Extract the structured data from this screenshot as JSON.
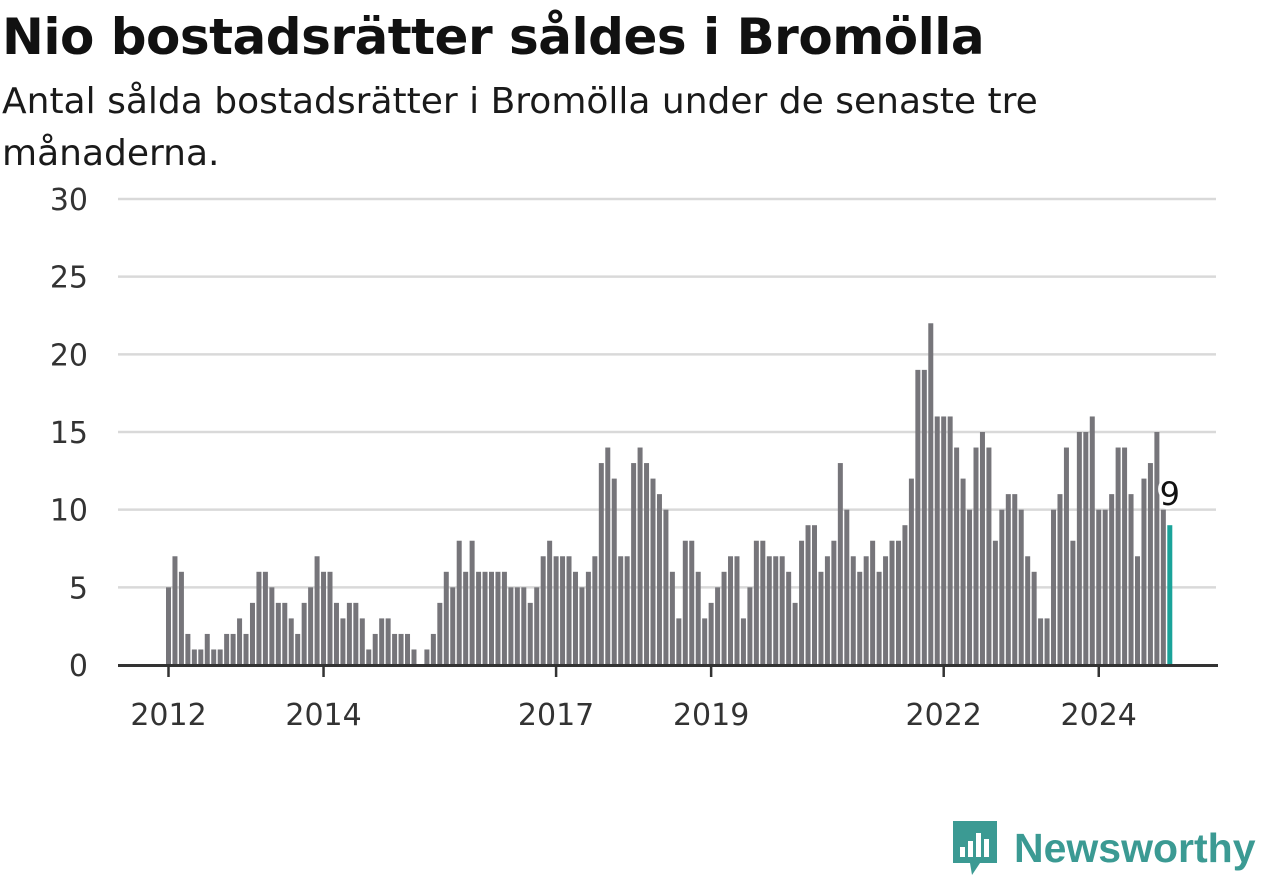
{
  "header": {
    "title": "Nio bostadsrätter såldes i Bromölla",
    "subtitle": "Antal sålda bostadsrätter i Bromölla under de senaste tre månaderna."
  },
  "brand": {
    "name": "Newsworthy",
    "color": "#3b9a93",
    "icon": "newsworthy-chart-bubble-icon"
  },
  "colors": {
    "bar": "#76757a",
    "highlight": "#1aa39a",
    "grid": "#d9d9d9",
    "axis": "#333333"
  },
  "chart_data": {
    "type": "bar",
    "title": "Nio bostadsrätter såldes i Bromölla",
    "subtitle": "Antal sålda bostadsrätter i Bromölla under de senaste tre månaderna.",
    "xlabel": "",
    "ylabel": "",
    "ylim": [
      0,
      30
    ],
    "yticks": [
      0,
      5,
      10,
      15,
      20,
      25,
      30
    ],
    "grid": true,
    "x_start": "2012-01",
    "frequency": "monthly",
    "xticks": [
      {
        "label": "2012",
        "month": "2012-01"
      },
      {
        "label": "2014",
        "month": "2014-01"
      },
      {
        "label": "2017",
        "month": "2017-01"
      },
      {
        "label": "2019",
        "month": "2019-01"
      },
      {
        "label": "2022",
        "month": "2022-01"
      },
      {
        "label": "2024",
        "month": "2024-01"
      }
    ],
    "values": [
      5,
      7,
      6,
      2,
      1,
      1,
      2,
      1,
      1,
      2,
      2,
      3,
      2,
      4,
      6,
      6,
      5,
      4,
      4,
      3,
      2,
      4,
      5,
      7,
      6,
      6,
      4,
      3,
      4,
      4,
      3,
      1,
      2,
      3,
      3,
      2,
      2,
      2,
      1,
      0,
      1,
      2,
      4,
      6,
      5,
      8,
      6,
      8,
      6,
      6,
      6,
      6,
      6,
      5,
      5,
      5,
      4,
      5,
      7,
      8,
      7,
      7,
      7,
      6,
      5,
      6,
      7,
      13,
      14,
      12,
      7,
      7,
      13,
      14,
      13,
      12,
      11,
      10,
      6,
      3,
      8,
      8,
      6,
      3,
      4,
      5,
      6,
      7,
      7,
      3,
      5,
      8,
      8,
      7,
      7,
      7,
      6,
      4,
      8,
      9,
      9,
      6,
      7,
      8,
      13,
      10,
      7,
      6,
      7,
      8,
      6,
      7,
      8,
      8,
      9,
      12,
      19,
      19,
      22,
      16,
      16,
      16,
      14,
      12,
      10,
      14,
      15,
      14,
      8,
      10,
      11,
      11,
      10,
      7,
      6,
      3,
      3,
      10,
      11,
      14,
      8,
      15,
      15,
      16,
      10,
      10,
      11,
      14,
      14,
      11,
      7,
      12,
      13,
      15,
      10,
      9
    ],
    "highlight": {
      "index": 155,
      "label": "9"
    }
  }
}
